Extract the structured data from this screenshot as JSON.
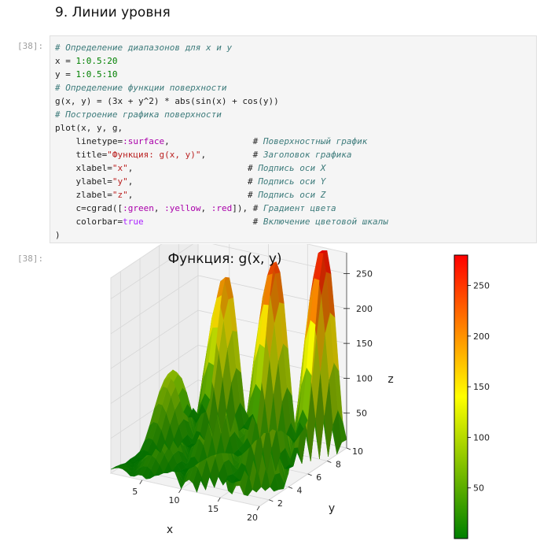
{
  "heading": "9. Линии уровня",
  "cell": {
    "input_prompt": "[38]:",
    "output_prompt": "[38]:",
    "code_lines": [
      [
        {
          "t": "# Определение диапазонов для x и y",
          "c": "cm"
        }
      ],
      [
        {
          "t": "x = ",
          "c": ""
        },
        {
          "t": "1:0.5:20",
          "c": "num"
        }
      ],
      [
        {
          "t": "y = ",
          "c": ""
        },
        {
          "t": "1:0.5:10",
          "c": "num"
        }
      ],
      [
        {
          "t": "# Определение функции поверхности",
          "c": "cm"
        }
      ],
      [
        {
          "t": "g(x, y) = (3x + y^2) * abs(sin(x) + cos(y))",
          "c": ""
        }
      ],
      [
        {
          "t": "# Построение графика поверхности",
          "c": "cm"
        }
      ],
      [
        {
          "t": "plot(x, y, g,",
          "c": ""
        }
      ],
      [
        {
          "t": "    linetype=",
          "c": ""
        },
        {
          "t": ":surface",
          "c": "sym"
        },
        {
          "t": ",                # ",
          "c": ""
        },
        {
          "t": "Поверхностный график",
          "c": "cm"
        }
      ],
      [
        {
          "t": "    title=",
          "c": ""
        },
        {
          "t": "\"Функция: g(x, y)\"",
          "c": "str"
        },
        {
          "t": ",         # ",
          "c": ""
        },
        {
          "t": "Заголовок графика",
          "c": "cm"
        }
      ],
      [
        {
          "t": "    xlabel=",
          "c": ""
        },
        {
          "t": "\"x\"",
          "c": "str"
        },
        {
          "t": ",                      # ",
          "c": ""
        },
        {
          "t": "Подпись оси X",
          "c": "cm"
        }
      ],
      [
        {
          "t": "    ylabel=",
          "c": ""
        },
        {
          "t": "\"y\"",
          "c": "str"
        },
        {
          "t": ",                      # ",
          "c": ""
        },
        {
          "t": "Подпись оси Y",
          "c": "cm"
        }
      ],
      [
        {
          "t": "    zlabel=",
          "c": ""
        },
        {
          "t": "\"z\"",
          "c": "str"
        },
        {
          "t": ",                      # ",
          "c": ""
        },
        {
          "t": "Подпись оси Z",
          "c": "cm"
        }
      ],
      [
        {
          "t": "    c=cgrad([",
          "c": ""
        },
        {
          "t": ":green",
          "c": "sym"
        },
        {
          "t": ", ",
          "c": ""
        },
        {
          "t": ":yellow",
          "c": "sym"
        },
        {
          "t": ", ",
          "c": ""
        },
        {
          "t": ":red",
          "c": "sym"
        },
        {
          "t": "]), # ",
          "c": ""
        },
        {
          "t": "Градиент цвета",
          "c": "cm"
        }
      ],
      [
        {
          "t": "    colorbar=",
          "c": ""
        },
        {
          "t": "true",
          "c": "kw"
        },
        {
          "t": "                     # ",
          "c": ""
        },
        {
          "t": "Включение цветовой шкалы",
          "c": "cm"
        }
      ],
      [
        {
          "t": ")",
          "c": ""
        }
      ]
    ]
  },
  "chart_data": {
    "type": "surface",
    "title": "Функция: g(x, y)",
    "xlabel": "x",
    "ylabel": "y",
    "zlabel": "z",
    "function": "g(x, y) = (3x + y^2) * abs(sin(x) + cos(y))",
    "x_range": [
      1,
      20
    ],
    "x_step": 0.5,
    "y_range": [
      1,
      10
    ],
    "y_step": 0.5,
    "x_ticks": [
      "5",
      "10",
      "15",
      "20"
    ],
    "y_ticks": [
      "2",
      "4",
      "6",
      "8",
      "10"
    ],
    "z_ticks": [
      "50",
      "100",
      "150",
      "200",
      "250"
    ],
    "colorbar_ticks": [
      "50",
      "100",
      "150",
      "200",
      "250"
    ],
    "colorbar_range": [
      0,
      280
    ],
    "colors": [
      "#008000",
      "#ffff00",
      "#ff0000"
    ],
    "grid": true,
    "colorbar": true
  }
}
